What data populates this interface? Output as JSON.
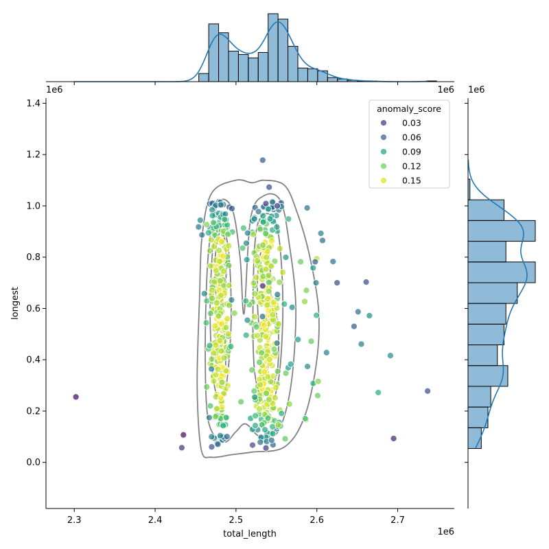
{
  "chart_data": {
    "type": "scatter",
    "subtype": "jointplot",
    "xlabel": "total_length",
    "ylabel": "longest",
    "x_multiplier_label": "1e6",
    "y_multiplier_label": "1e6",
    "xlim": [
      2.265,
      2.77
    ],
    "ylim": [
      -0.18,
      1.42
    ],
    "x_ticks": [
      "2.3",
      "2.4",
      "2.5",
      "2.6",
      "2.7"
    ],
    "y_ticks": [
      "0.0",
      "0.2",
      "0.4",
      "0.6",
      "0.8",
      "1.0",
      "1.2",
      "1.4"
    ],
    "grid": false,
    "legend": {
      "title": "anomaly_score",
      "placement": "top-right",
      "entries": [
        {
          "label": "0.03",
          "value": 0.03,
          "color": "#46337e"
        },
        {
          "label": "0.06",
          "value": 0.06,
          "color": "#365c8d"
        },
        {
          "label": "0.09",
          "value": 0.09,
          "color": "#1fa187"
        },
        {
          "label": "0.12",
          "value": 0.12,
          "color": "#6ece58"
        },
        {
          "label": "0.15",
          "value": 0.15,
          "color": "#dde318"
        }
      ]
    },
    "colormap": "viridis",
    "color_range": [
      0.015,
      0.165
    ],
    "points": [
      {
        "x": 2.302,
        "y": 0.255,
        "score": 0.02
      },
      {
        "x": 2.435,
        "y": 0.107,
        "score": 0.02
      },
      {
        "x": 2.433,
        "y": 0.057,
        "score": 0.04
      },
      {
        "x": 2.737,
        "y": 0.278,
        "score": 0.05
      },
      {
        "x": 2.695,
        "y": 0.093,
        "score": 0.03
      },
      {
        "x": 2.691,
        "y": 0.416,
        "score": 0.09
      },
      {
        "x": 2.676,
        "y": 0.272,
        "score": 0.11
      },
      {
        "x": 2.665,
        "y": 0.572,
        "score": 0.09
      },
      {
        "x": 2.661,
        "y": 0.703,
        "score": 0.05
      },
      {
        "x": 2.651,
        "y": 0.587,
        "score": 0.07
      },
      {
        "x": 2.655,
        "y": 0.461,
        "score": 0.08
      },
      {
        "x": 2.646,
        "y": 0.53,
        "score": 0.06
      },
      {
        "x": 2.625,
        "y": 0.7,
        "score": 0.05
      },
      {
        "x": 2.62,
        "y": 0.783,
        "score": 0.07
      },
      {
        "x": 2.612,
        "y": 0.428,
        "score": 0.08
      },
      {
        "x": 2.601,
        "y": 0.26,
        "score": 0.13
      },
      {
        "x": 2.533,
        "y": 1.178,
        "score": 0.06
      },
      {
        "x": 2.541,
        "y": 1.073,
        "score": 0.05
      },
      {
        "x": 2.533,
        "y": 0.688,
        "score": 0.03
      },
      {
        "x": 2.537,
        "y": 0.056,
        "score": 0.04
      },
      {
        "x": 2.537,
        "y": 1.009,
        "score": 0.04
      },
      {
        "x": 2.551,
        "y": 1.0,
        "score": 0.04
      },
      {
        "x": 2.588,
        "y": 0.992,
        "score": 0.07
      },
      {
        "x": 2.605,
        "y": 0.893,
        "score": 0.08
      },
      {
        "x": 2.607,
        "y": 0.865,
        "score": 0.07
      },
      {
        "x": 2.598,
        "y": 0.782,
        "score": 0.06
      },
      {
        "x": 2.599,
        "y": 0.7,
        "score": 0.08
      },
      {
        "x": 2.58,
        "y": 0.782,
        "score": 0.13
      },
      {
        "x": 2.585,
        "y": 0.627,
        "score": 0.14
      },
      {
        "x": 2.593,
        "y": 0.472,
        "score": 0.13
      }
    ],
    "cluster_point_count_approx": 560,
    "kde_levels": 5,
    "marginal_x_histogram": {
      "type": "bar",
      "bin_start": 2.454,
      "bin_width": 0.01225,
      "counts": [
        12,
        85,
        72,
        45,
        40,
        35,
        43,
        100,
        92,
        52,
        20,
        19,
        16,
        6,
        4,
        2,
        1,
        1,
        0,
        0,
        0,
        0,
        0,
        1
      ]
    },
    "marginal_y_histogram": {
      "type": "bar",
      "bin_start": 0.054,
      "bin_width": 0.0808,
      "counts": [
        14,
        21,
        24,
        42,
        31,
        38,
        40,
        52,
        71,
        40,
        71,
        38,
        2
      ]
    }
  }
}
